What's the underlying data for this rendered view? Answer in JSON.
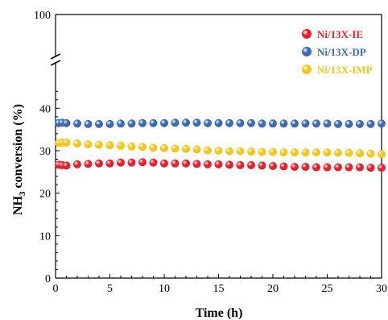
{
  "chart_data": {
    "type": "scatter",
    "xlabel": "Time (h)",
    "ylabel_main": "NH",
    "ylabel_sub": "3",
    "ylabel_rest": " conversion (%)",
    "xlim": [
      0,
      30
    ],
    "ylim_lower": [
      0,
      45
    ],
    "y_break_top_value": 100,
    "x_ticks": [
      0,
      5,
      10,
      15,
      20,
      25,
      30
    ],
    "y_ticks": [
      0,
      10,
      20,
      30,
      40
    ],
    "y_top_tick": 100,
    "grid": false,
    "legend_position": "top-right",
    "x": [
      0.3,
      0.6,
      1,
      2,
      3,
      4,
      5,
      6,
      7,
      8,
      9,
      10,
      11,
      12,
      13,
      14,
      15,
      16,
      17,
      18,
      19,
      20,
      21,
      22,
      23,
      24,
      25,
      26,
      27,
      28,
      29,
      30
    ],
    "series": [
      {
        "name": "Ni/13X-IE",
        "color": "#e8202a",
        "values": [
          26.7,
          26.6,
          26.5,
          26.8,
          26.9,
          27.0,
          27.0,
          27.2,
          27.2,
          27.3,
          27.2,
          27.0,
          27.0,
          27.0,
          26.9,
          26.8,
          26.8,
          26.7,
          26.6,
          26.6,
          26.5,
          26.4,
          26.3,
          26.2,
          26.2,
          26.1,
          26.1,
          26.1,
          26.1,
          26.1,
          26.0,
          26.0
        ]
      },
      {
        "name": "Ni/13X-DP",
        "color": "#3a6ab0",
        "values": [
          36.5,
          36.6,
          36.5,
          36.4,
          36.3,
          36.3,
          36.3,
          36.4,
          36.4,
          36.5,
          36.5,
          36.5,
          36.6,
          36.6,
          36.6,
          36.5,
          36.5,
          36.5,
          36.5,
          36.5,
          36.4,
          36.4,
          36.4,
          36.4,
          36.4,
          36.4,
          36.4,
          36.3,
          36.3,
          36.3,
          36.3,
          36.4
        ]
      },
      {
        "name": "Ni/13X-IMP",
        "color": "#f5c518",
        "values": [
          31.8,
          31.9,
          31.9,
          31.7,
          31.5,
          31.4,
          31.3,
          31.2,
          31.0,
          30.9,
          30.7,
          30.6,
          30.5,
          30.4,
          30.3,
          30.1,
          30.0,
          29.9,
          29.9,
          29.8,
          29.7,
          29.7,
          29.6,
          29.6,
          29.6,
          29.6,
          29.6,
          29.5,
          29.5,
          29.4,
          29.3,
          29.2
        ]
      }
    ]
  }
}
